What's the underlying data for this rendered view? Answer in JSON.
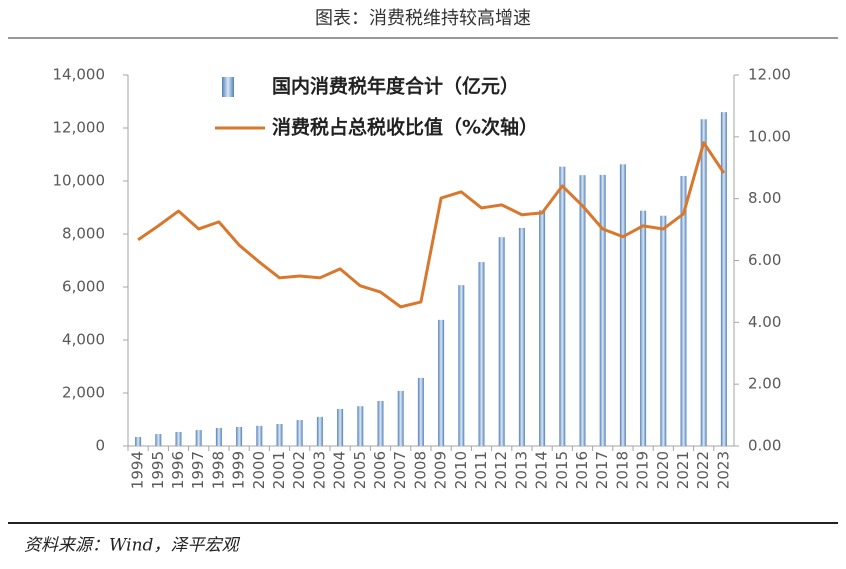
{
  "chart_data": {
    "type": "bar",
    "title": "图表：消费税维持较高增速",
    "source": "资料来源：Wind，泽平宏观",
    "categories": [
      "1994",
      "1995",
      "1996",
      "1997",
      "1998",
      "1999",
      "2000",
      "2001",
      "2002",
      "2003",
      "2004",
      "2005",
      "2006",
      "2007",
      "2008",
      "2009",
      "2010",
      "2011",
      "2012",
      "2013",
      "2014",
      "2015",
      "2016",
      "2017",
      "2018",
      "2019",
      "2020",
      "2021",
      "2022",
      "2023"
    ],
    "series": [
      {
        "name": "国内消费税年度合计（亿元）",
        "type": "bar",
        "color": "#4f81bd",
        "values": [
          340,
          450,
          530,
          600,
          680,
          720,
          760,
          830,
          980,
          1100,
          1400,
          1500,
          1700,
          2080,
          2570,
          4760,
          6070,
          6940,
          7880,
          8230,
          8900,
          10540,
          10220,
          10230,
          10630,
          8880,
          8690,
          10190,
          12330,
          12600
        ]
      },
      {
        "name": "消费税占总税收比值（%次轴）",
        "type": "line",
        "axis": "y2",
        "color": "#d9782d",
        "values": [
          6.67,
          7.12,
          7.6,
          7.02,
          7.25,
          6.5,
          5.95,
          5.44,
          5.5,
          5.44,
          5.73,
          5.18,
          4.98,
          4.5,
          4.66,
          8.02,
          8.22,
          7.7,
          7.8,
          7.48,
          7.54,
          8.41,
          7.77,
          7.02,
          6.77,
          7.12,
          7.02,
          7.51,
          9.81,
          8.83
        ]
      }
    ],
    "ylim": [
      0,
      14000
    ],
    "yticks": [
      {
        "value": 0,
        "label": "0"
      },
      {
        "value": 2000,
        "label": "2,000"
      },
      {
        "value": 4000,
        "label": "4,000"
      },
      {
        "value": 6000,
        "label": "6,000"
      },
      {
        "value": 8000,
        "label": "8,000"
      },
      {
        "value": 10000,
        "label": "10,000"
      },
      {
        "value": 12000,
        "label": "12,000"
      },
      {
        "value": 14000,
        "label": "14,000"
      }
    ],
    "y2lim": [
      0,
      12
    ],
    "y2ticks": [
      {
        "value": 0,
        "label": "0.00"
      },
      {
        "value": 2,
        "label": "2.00"
      },
      {
        "value": 4,
        "label": "4.00"
      },
      {
        "value": 6,
        "label": "6.00"
      },
      {
        "value": 8,
        "label": "8.00"
      },
      {
        "value": 10,
        "label": "10.00"
      },
      {
        "value": 12,
        "label": "12.00"
      }
    ],
    "grid": false
  }
}
